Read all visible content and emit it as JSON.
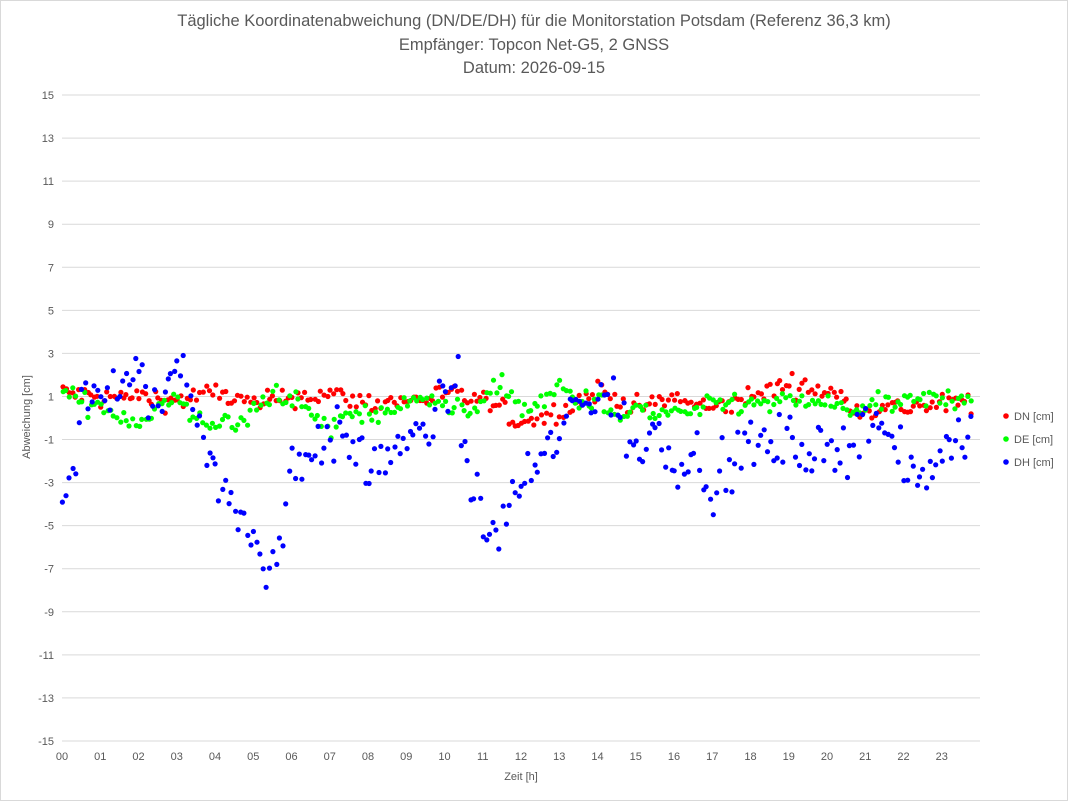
{
  "chart_data": {
    "type": "scatter",
    "title": "Tägliche Koordinatenabweichung (DN/DE/DH) für die Monitorstation Potsdam (Referenz 36,3 km)",
    "subtitle": "Empfänger: Topcon Net-G5, 2 GNSS",
    "date_line": "Datum: 2026-09-15",
    "xlabel": "Zeit [h]",
    "ylabel": "Abweichung [cm]",
    "xlim": [
      0,
      24
    ],
    "ylim": [
      -15,
      15
    ],
    "x_ticks": [
      "00",
      "01",
      "02",
      "03",
      "04",
      "05",
      "06",
      "07",
      "08",
      "09",
      "10",
      "11",
      "12",
      "13",
      "14",
      "15",
      "16",
      "17",
      "18",
      "19",
      "20",
      "21",
      "22",
      "23"
    ],
    "y_ticks": [
      15,
      13,
      11,
      9,
      7,
      5,
      3,
      1,
      -1,
      -3,
      -5,
      -7,
      -9,
      -11,
      -13,
      -15
    ],
    "grid": "horizontal",
    "legend_position": "right",
    "sample_interval_minutes": 5,
    "series": [
      {
        "name": "DN [cm]",
        "color": "#ff0000",
        "keypoints": [
          [
            0,
            1.2
          ],
          [
            1,
            0.9
          ],
          [
            2,
            1.0
          ],
          [
            3,
            0.8
          ],
          [
            4,
            1.2
          ],
          [
            5,
            0.6
          ],
          [
            6,
            1.0
          ],
          [
            7,
            1.1
          ],
          [
            8,
            0.7
          ],
          [
            9,
            0.8
          ],
          [
            10,
            1.1
          ],
          [
            11,
            0.8
          ],
          [
            12,
            -0.2
          ],
          [
            13,
            0.3
          ],
          [
            14,
            1.3
          ],
          [
            15,
            0.5
          ],
          [
            16,
            0.9
          ],
          [
            17,
            0.4
          ],
          [
            18,
            1.0
          ],
          [
            19,
            1.6
          ],
          [
            20,
            1.2
          ],
          [
            21,
            0.4
          ],
          [
            22,
            0.5
          ],
          [
            23,
            0.6
          ],
          [
            24,
            0.8
          ]
        ]
      },
      {
        "name": "DE [cm]",
        "color": "#00ff00",
        "keypoints": [
          [
            0,
            1.2
          ],
          [
            0.5,
            0.7
          ],
          [
            1,
            0.6
          ],
          [
            1.5,
            0.1
          ],
          [
            2,
            -0.2
          ],
          [
            2.5,
            0.5
          ],
          [
            3,
            0.9
          ],
          [
            3.3,
            0.1
          ],
          [
            4,
            -0.2
          ],
          [
            4.6,
            -0.4
          ],
          [
            5,
            0.3
          ],
          [
            5.6,
            1.3
          ],
          [
            6,
            0.8
          ],
          [
            6.5,
            0.2
          ],
          [
            7,
            -0.6
          ],
          [
            7.5,
            0.3
          ],
          [
            8,
            0.1
          ],
          [
            8.5,
            0.4
          ],
          [
            9,
            0.5
          ],
          [
            9.5,
            1.3
          ],
          [
            10,
            0.5
          ],
          [
            10.5,
            0.2
          ],
          [
            11,
            1.0
          ],
          [
            11.5,
            1.5
          ],
          [
            12,
            0.5
          ],
          [
            12.5,
            0.5
          ],
          [
            13,
            1.5
          ],
          [
            13.5,
            0.7
          ],
          [
            14,
            1.0
          ],
          [
            14.5,
            -0.3
          ],
          [
            15,
            0.6
          ],
          [
            15.5,
            0.0
          ],
          [
            16,
            0.4
          ],
          [
            16.5,
            0.1
          ],
          [
            17,
            0.6
          ],
          [
            17.5,
            0.7
          ],
          [
            18,
            0.6
          ],
          [
            19,
            0.7
          ],
          [
            19.5,
            0.8
          ],
          [
            20,
            0.6
          ],
          [
            20.5,
            0.4
          ],
          [
            21,
            0.5
          ],
          [
            22,
            0.7
          ],
          [
            23,
            0.9
          ],
          [
            24,
            1.0
          ]
        ]
      },
      {
        "name": "DH [cm]",
        "color": "#0000ff",
        "keypoints": [
          [
            0,
            -3.5
          ],
          [
            0.3,
            -2.0
          ],
          [
            0.5,
            0.5
          ],
          [
            1,
            1.2
          ],
          [
            1.5,
            1.5
          ],
          [
            2,
            1.6
          ],
          [
            2.5,
            0.5
          ],
          [
            3,
            2.6
          ],
          [
            3.3,
            2.0
          ],
          [
            3.6,
            -0.2
          ],
          [
            4,
            -2.6
          ],
          [
            4.5,
            -4.5
          ],
          [
            5,
            -5.5
          ],
          [
            5.3,
            -7.0
          ],
          [
            5.5,
            -6.5
          ],
          [
            5.8,
            -5.0
          ],
          [
            6,
            -2.0
          ],
          [
            6.5,
            -1.5
          ],
          [
            7,
            -0.8
          ],
          [
            7.5,
            -1.2
          ],
          [
            8,
            -2.5
          ],
          [
            8.5,
            -1.5
          ],
          [
            9,
            -1.5
          ],
          [
            9.5,
            -0.5
          ],
          [
            10,
            0.8
          ],
          [
            10.3,
            2.0
          ],
          [
            10.5,
            -1.5
          ],
          [
            11,
            -5.0
          ],
          [
            11.3,
            -6.0
          ],
          [
            11.5,
            -4.5
          ],
          [
            12,
            -3.0
          ],
          [
            12.5,
            -2.0
          ],
          [
            13,
            -1.0
          ],
          [
            13.3,
            0.5
          ],
          [
            14,
            1.2
          ],
          [
            14.5,
            0.5
          ],
          [
            15,
            -1.8
          ],
          [
            15.5,
            -0.5
          ],
          [
            16,
            -2.0
          ],
          [
            16.5,
            -1.5
          ],
          [
            17,
            -3.0
          ],
          [
            17.5,
            -2.5
          ],
          [
            18,
            -1.0
          ],
          [
            18.5,
            -1.5
          ],
          [
            19,
            -1.0
          ],
          [
            19.5,
            -1.5
          ],
          [
            20,
            -2.0
          ],
          [
            20.5,
            -1.2
          ],
          [
            21,
            0.2
          ],
          [
            21.5,
            -0.5
          ],
          [
            22,
            -2.5
          ],
          [
            22.5,
            -3.0
          ],
          [
            23,
            -1.5
          ],
          [
            23.5,
            -0.5
          ],
          [
            24,
            -0.5
          ]
        ]
      }
    ]
  }
}
